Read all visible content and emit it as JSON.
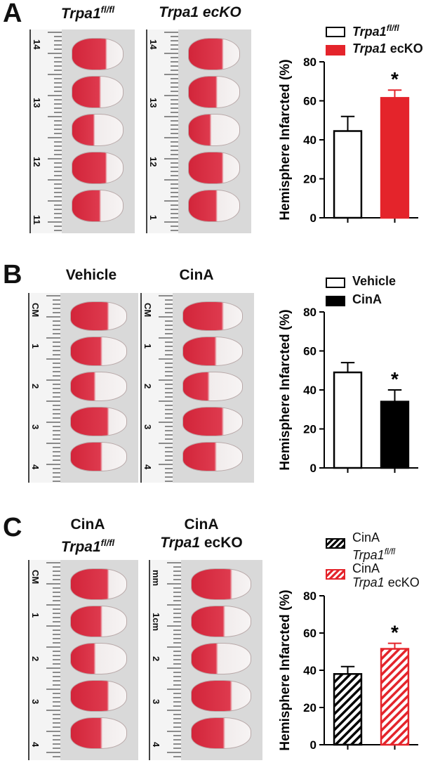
{
  "panels": [
    {
      "letter": "A",
      "left_label": {
        "gene": "Trpa1",
        "sup": "fl/fl",
        "suffix": ""
      },
      "right_label": {
        "gene": "Trpa1 ecKO",
        "sup": "",
        "suffix": ""
      },
      "ruler_left": [
        "14",
        "13",
        "12",
        "11"
      ],
      "ruler_right": [
        "14",
        "13",
        "12",
        "1"
      ],
      "legend": [
        {
          "gene": "Trpa1",
          "sup": "fl/fl",
          "suffix": "",
          "fill": "#ffffff",
          "pattern": "none"
        },
        {
          "gene": "Trpa1",
          "sup": "",
          "suffix": " ecKO",
          "fill": "#e4242b",
          "pattern": "none"
        }
      ],
      "chart_data": {
        "type": "bar",
        "categories": [
          "Trpa1 fl/fl",
          "Trpa1 ecKO"
        ],
        "values": [
          44.5,
          61.5
        ],
        "errors": [
          7.5,
          4
        ],
        "ylabel": "Hemisphere Infarcted (%)",
        "ylim": [
          0,
          80
        ],
        "yticks": [
          0,
          20,
          40,
          60,
          80
        ],
        "colors": [
          "#ffffff",
          "#e4242b"
        ],
        "edge": [
          "#000000",
          "#e4242b"
        ],
        "annotations": [
          {
            "bar": 1,
            "text": "*"
          }
        ]
      }
    },
    {
      "letter": "B",
      "left_label": {
        "gene": "Vehicle",
        "sup": "",
        "suffix": "",
        "plain": true
      },
      "right_label": {
        "gene": "CinA",
        "sup": "",
        "suffix": "",
        "plain": true
      },
      "ruler_left": [
        "CM",
        "1",
        "2",
        "3",
        "4"
      ],
      "ruler_right": [
        "CM",
        "1",
        "2",
        "3",
        "4"
      ],
      "legend": [
        {
          "gene": "Vehicle",
          "sup": "",
          "suffix": "",
          "fill": "#ffffff",
          "pattern": "none",
          "plain": true
        },
        {
          "gene": "CinA",
          "sup": "",
          "suffix": "",
          "fill": "#000000",
          "pattern": "none",
          "plain": true
        }
      ],
      "chart_data": {
        "type": "bar",
        "categories": [
          "Vehicle",
          "CinA"
        ],
        "values": [
          49,
          34
        ],
        "errors": [
          5,
          6
        ],
        "ylabel": "Hemisphere Infarcted (%)",
        "ylim": [
          0,
          80
        ],
        "yticks": [
          0,
          20,
          40,
          60,
          80
        ],
        "colors": [
          "#ffffff",
          "#000000"
        ],
        "edge": [
          "#000000",
          "#000000"
        ],
        "annotations": [
          {
            "bar": 1,
            "text": "*"
          }
        ]
      }
    },
    {
      "letter": "C",
      "left_label": {
        "top": "CinA",
        "gene": "Trpa1",
        "sup": "fl/fl",
        "suffix": ""
      },
      "right_label": {
        "top": "CinA",
        "gene": "Trpa1",
        "sup": "",
        "suffix": " ecKO"
      },
      "ruler_left": [
        "CM",
        "1",
        "2",
        "3",
        "4"
      ],
      "ruler_right": [
        "mm",
        "1cm",
        "2",
        "3",
        "4"
      ],
      "legend": [
        {
          "top": "CinA",
          "gene": "Trpa1",
          "sup": "fl/fl",
          "suffix": "",
          "fill": "#ffffff",
          "pattern": "hatch-black"
        },
        {
          "top": "CinA",
          "gene": "Trpa1",
          "sup": "",
          "suffix": " ecKO",
          "fill": "#ffffff",
          "pattern": "hatch-red"
        }
      ],
      "chart_data": {
        "type": "bar",
        "categories": [
          "CinA Trpa1 fl/fl",
          "CinA Trpa1 ecKO"
        ],
        "values": [
          38,
          51.5
        ],
        "errors": [
          4,
          3
        ],
        "ylabel": "Hemisphere Infarcted (%)",
        "ylim": [
          0,
          80
        ],
        "yticks": [
          0,
          20,
          40,
          60,
          80
        ],
        "colors": [
          "hatch-black",
          "hatch-red"
        ],
        "edge": [
          "#000000",
          "#e4242b"
        ],
        "annotations": [
          {
            "bar": 1,
            "text": "*"
          }
        ]
      }
    }
  ]
}
